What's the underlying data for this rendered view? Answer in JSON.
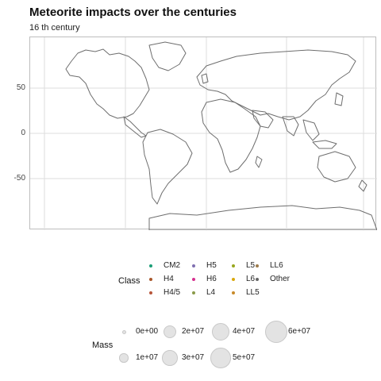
{
  "title": "Meteorite impacts over the centuries",
  "subtitle": "16 th century",
  "axes": {
    "y_ticks": [
      "50",
      "0",
      "-50"
    ]
  },
  "legend_class": {
    "title": "Class",
    "items": [
      {
        "label": "CM2",
        "color": "#1b9e77"
      },
      {
        "label": "H4",
        "color": "#a9572a"
      },
      {
        "label": "H4/5",
        "color": "#b7563a"
      },
      {
        "label": "H5",
        "color": "#7f6fb1"
      },
      {
        "label": "H6",
        "color": "#d62f8f"
      },
      {
        "label": "L4",
        "color": "#8a9a4a"
      },
      {
        "label": "L5",
        "color": "#98a61e"
      },
      {
        "label": "L6",
        "color": "#d9a80c"
      },
      {
        "label": "LL5",
        "color": "#c88a2a"
      },
      {
        "label": "LL6",
        "color": "#9c7a4a"
      },
      {
        "label": "Other",
        "color": "#666666"
      }
    ]
  },
  "legend_mass": {
    "title": "Mass",
    "items": [
      {
        "label": "0e+00",
        "value": 0
      },
      {
        "label": "1e+07",
        "value": 10000000
      },
      {
        "label": "2e+07",
        "value": 20000000
      },
      {
        "label": "3e+07",
        "value": 30000000
      },
      {
        "label": "4e+07",
        "value": 40000000
      },
      {
        "label": "5e+07",
        "value": 50000000
      },
      {
        "label": "6e+07",
        "value": 60000000
      }
    ]
  },
  "colors": {
    "land_outline": "#6e6e6e",
    "grid": "#dedede",
    "panel_border": "#bdbdbd"
  }
}
